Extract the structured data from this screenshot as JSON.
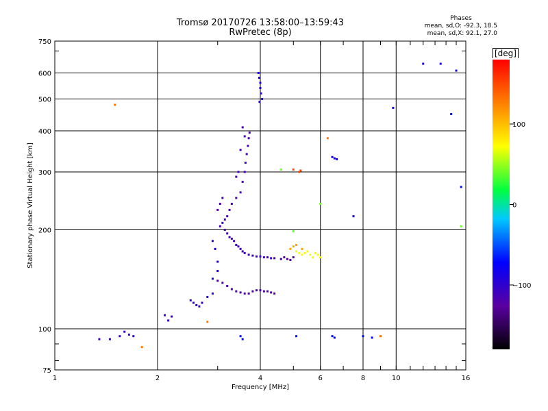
{
  "chart_data": {
    "type": "scatter",
    "title": "Tromsø 20170726 13:58:00–13:59:43",
    "subtitle": "RwPretec (8p)",
    "xlabel": "Frequency [MHz]",
    "ylabel": "Stationary phase Virtual Height [km]",
    "x_scale": "log",
    "y_scale": "log",
    "xlim": [
      1,
      16
    ],
    "ylim": [
      75,
      750
    ],
    "grid": true,
    "x_ticks": [
      1,
      2,
      4,
      6,
      8,
      10,
      16
    ],
    "y_ticks": [
      75,
      100,
      200,
      300,
      400,
      500,
      600,
      750
    ],
    "colorbar": {
      "label": "[deg]",
      "range": [
        -180,
        180
      ],
      "ticks": [
        100,
        0,
        -100
      ]
    },
    "phases": {
      "title": "Phases",
      "o_line": "mean, sd,O: -92.3, 18.5",
      "x_line": "mean, sd,X:  92.1, 27.0"
    },
    "point_groups": [
      {
        "phase": -110,
        "points": [
          [
            3.05,
            205
          ],
          [
            3.1,
            210
          ],
          [
            3.15,
            200
          ],
          [
            3.2,
            195
          ],
          [
            3.25,
            190
          ],
          [
            3.3,
            188
          ],
          [
            3.35,
            185
          ],
          [
            3.4,
            180
          ],
          [
            3.45,
            178
          ],
          [
            3.5,
            175
          ],
          [
            3.55,
            172
          ],
          [
            3.6,
            170
          ],
          [
            3.7,
            168
          ],
          [
            3.8,
            167
          ],
          [
            3.9,
            166
          ],
          [
            4.0,
            166
          ],
          [
            4.1,
            165
          ],
          [
            4.2,
            165
          ],
          [
            4.3,
            164
          ],
          [
            4.4,
            164
          ],
          [
            4.6,
            163
          ]
        ]
      },
      {
        "phase": -115,
        "points": [
          [
            3.0,
            230
          ],
          [
            3.05,
            240
          ],
          [
            3.1,
            250
          ],
          [
            3.15,
            215
          ],
          [
            3.2,
            220
          ],
          [
            3.25,
            230
          ],
          [
            3.3,
            240
          ],
          [
            3.4,
            250
          ],
          [
            3.5,
            260
          ],
          [
            3.55,
            280
          ],
          [
            3.6,
            300
          ],
          [
            3.62,
            320
          ],
          [
            3.65,
            340
          ],
          [
            3.68,
            360
          ],
          [
            3.7,
            380
          ],
          [
            3.72,
            395
          ],
          [
            3.55,
            410
          ],
          [
            3.6,
            385
          ],
          [
            3.5,
            350
          ],
          [
            3.45,
            300
          ],
          [
            3.4,
            290
          ]
        ]
      },
      {
        "phase": -120,
        "points": [
          [
            3.2,
            135
          ],
          [
            3.3,
            132
          ],
          [
            3.4,
            130
          ],
          [
            3.5,
            129
          ],
          [
            3.6,
            128
          ],
          [
            3.7,
            128
          ],
          [
            3.8,
            130
          ],
          [
            3.9,
            131
          ],
          [
            4.0,
            131
          ],
          [
            4.1,
            130
          ],
          [
            4.2,
            130
          ],
          [
            4.3,
            129
          ],
          [
            4.4,
            128
          ],
          [
            3.1,
            138
          ],
          [
            3.0,
            140
          ]
        ]
      },
      {
        "phase": -100,
        "points": [
          [
            2.5,
            122
          ],
          [
            2.55,
            120
          ],
          [
            2.6,
            118
          ],
          [
            2.65,
            117
          ],
          [
            2.7,
            120
          ],
          [
            2.8,
            125
          ],
          [
            2.9,
            128
          ]
        ]
      },
      {
        "phase": -90,
        "points": [
          [
            3.95,
            600
          ],
          [
            3.97,
            580
          ],
          [
            4.0,
            560
          ],
          [
            4.0,
            540
          ],
          [
            4.02,
            520
          ],
          [
            4.05,
            500
          ],
          [
            3.98,
            490
          ]
        ]
      },
      {
        "phase": -95,
        "points": [
          [
            2.9,
            185
          ],
          [
            2.95,
            175
          ],
          [
            3.0,
            160
          ],
          [
            3.0,
            150
          ],
          [
            2.9,
            142
          ]
        ]
      },
      {
        "phase": -105,
        "points": [
          [
            1.35,
            93
          ],
          [
            1.45,
            93
          ],
          [
            1.55,
            95
          ],
          [
            1.6,
            98
          ],
          [
            1.65,
            96
          ],
          [
            1.7,
            95
          ],
          [
            2.1,
            110
          ],
          [
            2.15,
            106
          ],
          [
            2.2,
            109
          ]
        ]
      },
      {
        "phase": 70,
        "points": [
          [
            5.1,
            172
          ],
          [
            5.2,
            170
          ],
          [
            5.3,
            168
          ],
          [
            5.4,
            170
          ],
          [
            5.5,
            172
          ],
          [
            5.6,
            168
          ],
          [
            5.7,
            165
          ],
          [
            5.8,
            170
          ],
          [
            5.9,
            168
          ],
          [
            6.0,
            165
          ]
        ]
      },
      {
        "phase": 110,
        "points": [
          [
            4.9,
            175
          ],
          [
            5.0,
            178
          ],
          [
            5.1,
            180
          ],
          [
            5.3,
            175
          ]
        ]
      },
      {
        "phase": -130,
        "points": [
          [
            4.7,
            165
          ],
          [
            4.8,
            163
          ],
          [
            4.9,
            162
          ],
          [
            5.0,
            165
          ]
        ]
      },
      {
        "phase": 150,
        "points": [
          [
            5.0,
            305
          ],
          [
            5.2,
            300
          ],
          [
            5.25,
            303
          ]
        ]
      },
      {
        "phase": -85,
        "points": [
          [
            6.5,
            333
          ],
          [
            6.6,
            330
          ],
          [
            6.7,
            328
          ],
          [
            7.5,
            220
          ],
          [
            9.8,
            470
          ],
          [
            12,
            640
          ],
          [
            13.5,
            640
          ],
          [
            15,
            610
          ]
        ]
      },
      {
        "phase": 130,
        "points": [
          [
            6.3,
            380
          ],
          [
            1.5,
            480
          ],
          [
            1.8,
            88
          ],
          [
            2.8,
            105
          ],
          [
            9,
            95
          ]
        ]
      },
      {
        "phase": -70,
        "points": [
          [
            6.5,
            95
          ],
          [
            6.6,
            94
          ],
          [
            5.1,
            95
          ],
          [
            3.5,
            95
          ],
          [
            3.55,
            93
          ],
          [
            8,
            95
          ],
          [
            8.5,
            94
          ],
          [
            15.5,
            270
          ],
          [
            14.5,
            450
          ]
        ]
      },
      {
        "phase": 40,
        "points": [
          [
            6.0,
            240
          ],
          [
            5.0,
            198
          ],
          [
            15.5,
            205
          ],
          [
            4.6,
            305
          ]
        ]
      }
    ]
  },
  "aria": {
    "x_tick_labels": [
      "1",
      "2",
      "4",
      "6",
      "8",
      "10",
      "16"
    ],
    "y_tick_labels": [
      "75",
      "100",
      "200",
      "300",
      "400",
      "500",
      "600",
      "750"
    ],
    "colorbar_tick_labels": [
      "100",
      "0",
      "−100"
    ]
  }
}
